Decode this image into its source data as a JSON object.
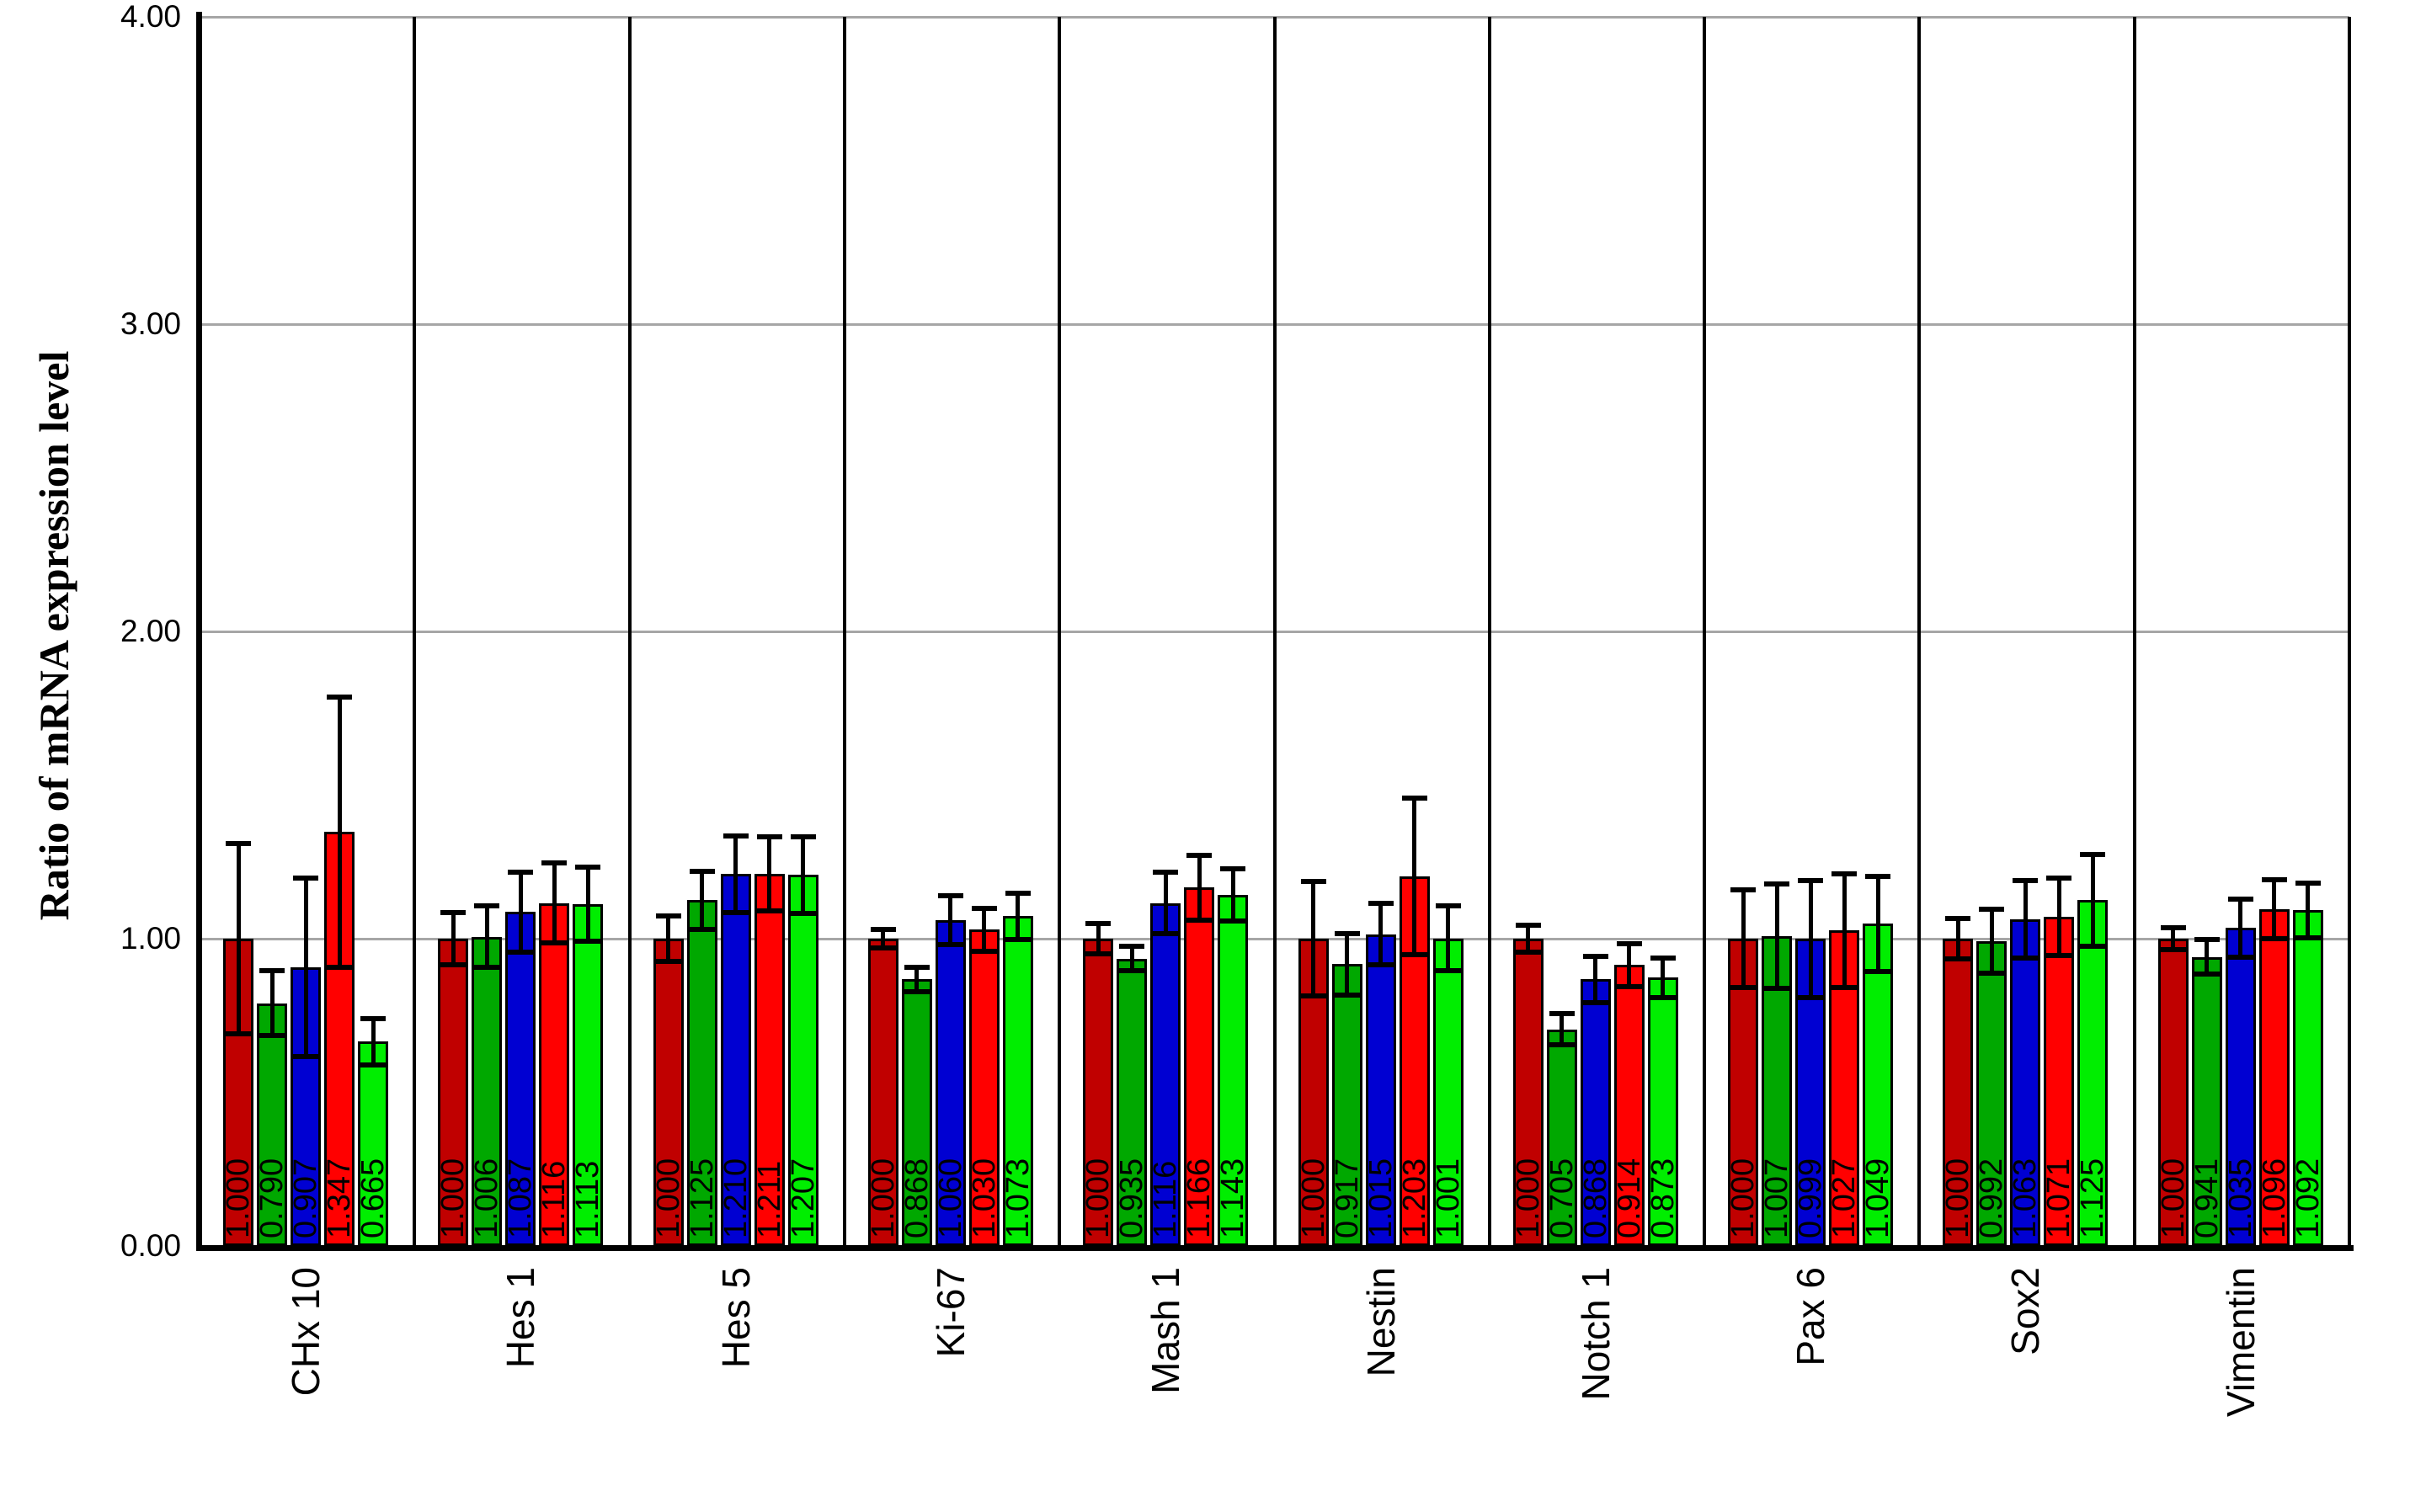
{
  "y_axis": {
    "title": "Ratio of mRNA expression level",
    "ticks": [
      "0.00",
      "1.00",
      "2.00",
      "3.00",
      "4.00"
    ],
    "min": 0.0,
    "max": 4.0
  },
  "chart_data": {
    "type": "bar",
    "title": "",
    "xlabel": "",
    "ylabel": "Ratio of mRNA expression level",
    "ylim": [
      0.0,
      4.0
    ],
    "grid": true,
    "legend": "none",
    "error_bars": true,
    "bar_value_labels_rotated": true,
    "categories": [
      "CHx 10",
      "Hes 1",
      "Hes 5",
      "Ki-67",
      "Mash 1",
      "Nestin",
      "Notch 1",
      "Pax 6",
      "Sox2",
      "Vimentin"
    ],
    "series": [
      {
        "color": "#c00000",
        "values": [
          1.0,
          1.0,
          1.0,
          1.0,
          1.0,
          1.0,
          1.0,
          1.0,
          1.0,
          1.0
        ],
        "labels": [
          "1.000",
          "1.000",
          "1.000",
          "1.000",
          "1.000",
          "1.000",
          "1.000",
          "1.000",
          "1.000",
          "1.000"
        ],
        "errors": [
          0.31,
          0.085,
          0.074,
          0.03,
          0.05,
          0.185,
          0.045,
          0.16,
          0.065,
          0.035
        ]
      },
      {
        "color": "#00a800",
        "values": [
          0.79,
          1.006,
          1.125,
          0.868,
          0.935,
          0.917,
          0.705,
          1.007,
          0.992,
          0.941
        ],
        "labels": [
          "0.790",
          "1.006",
          "1.125",
          "0.868",
          "0.935",
          "0.917",
          "0.705",
          "1.007",
          "0.992",
          "0.941"
        ],
        "errors": [
          0.105,
          0.1,
          0.094,
          0.04,
          0.04,
          0.1,
          0.05,
          0.17,
          0.105,
          0.055
        ]
      },
      {
        "color": "#0000d2",
        "values": [
          0.907,
          1.087,
          1.21,
          1.06,
          1.116,
          1.015,
          0.868,
          0.999,
          1.063,
          1.035
        ],
        "labels": [
          "0.907",
          "1.087",
          "1.210",
          "1.060",
          "1.116",
          "1.015",
          "0.868",
          "0.999",
          "1.063",
          "1.035"
        ],
        "errors": [
          0.29,
          0.13,
          0.125,
          0.08,
          0.1,
          0.1,
          0.075,
          0.19,
          0.125,
          0.095
        ]
      },
      {
        "color": "#ff0000",
        "values": [
          1.347,
          1.116,
          1.211,
          1.03,
          1.166,
          1.203,
          0.914,
          1.027,
          1.071,
          1.096
        ],
        "labels": [
          "1.347",
          "1.116",
          "1.211",
          "1.030",
          "1.166",
          "1.203",
          "0.914",
          "1.027",
          "1.071",
          "1.096"
        ],
        "errors": [
          0.44,
          0.13,
          0.12,
          0.07,
          0.105,
          0.255,
          0.07,
          0.185,
          0.125,
          0.095
        ]
      },
      {
        "color": "#00ee00",
        "values": [
          0.665,
          1.113,
          1.207,
          1.073,
          1.143,
          1.001,
          0.873,
          1.049,
          1.125,
          1.092
        ],
        "labels": [
          "0.665",
          "1.113",
          "1.207",
          "1.073",
          "1.143",
          "1.001",
          "0.873",
          "1.049",
          "1.125",
          "1.092"
        ],
        "errors": [
          0.075,
          0.12,
          0.125,
          0.075,
          0.085,
          0.105,
          0.065,
          0.155,
          0.15,
          0.09
        ]
      }
    ]
  }
}
